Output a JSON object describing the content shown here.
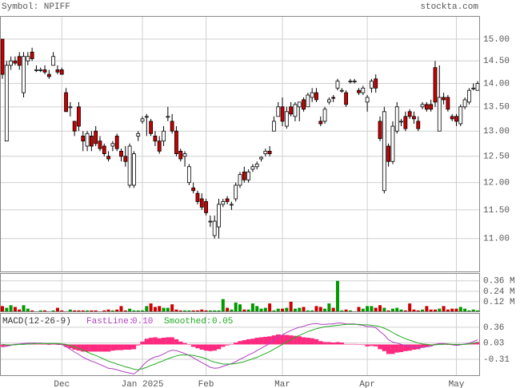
{
  "chart_data": [
    {
      "type": "candlestick",
      "title": "Symbol: NPIFF",
      "source": "stockta.com",
      "log": true,
      "grid": true,
      "up_color": "#ffffff",
      "down_color": "#cc0000",
      "ylim": [
        10.45,
        15.55
      ],
      "yticks": [
        {
          "value": 11,
          "label": "11.00"
        },
        {
          "value": 11.5,
          "label": "11.50"
        },
        {
          "value": 12,
          "label": "12.00"
        },
        {
          "value": 12.5,
          "label": "12.50"
        },
        {
          "value": 13,
          "label": "13.00"
        },
        {
          "value": 13.5,
          "label": "13.50"
        },
        {
          "value": 14,
          "label": "14.00"
        },
        {
          "value": 14.5,
          "label": "14.50"
        },
        {
          "value": 15,
          "label": "15.00"
        }
      ],
      "x_labels": [
        {
          "index": 14,
          "label": "Dec"
        },
        {
          "index": 33,
          "label": "Jan 2025"
        },
        {
          "index": 48,
          "label": "Feb"
        },
        {
          "index": 66,
          "label": "Mar"
        },
        {
          "index": 86,
          "label": "Apr"
        },
        {
          "index": 107,
          "label": "May"
        }
      ],
      "candles": [
        [
          15.0,
          15.0,
          14.1,
          14.2
        ],
        [
          12.8,
          14.5,
          12.8,
          14.4
        ],
        [
          14.4,
          14.6,
          14.3,
          14.5
        ],
        [
          14.5,
          14.6,
          14.4,
          14.45
        ],
        [
          14.6,
          14.7,
          14.3,
          14.4
        ],
        [
          13.8,
          14.7,
          13.7,
          14.6
        ],
        [
          14.5,
          14.7,
          14.4,
          14.6
        ],
        [
          14.7,
          14.8,
          14.5,
          14.55
        ],
        [
          14.3,
          14.4,
          14.25,
          14.3
        ],
        [
          14.3,
          14.35,
          14.25,
          14.3
        ],
        [
          14.3,
          14.4,
          14.2,
          14.25
        ],
        [
          14.2,
          14.3,
          14.1,
          14.15
        ],
        [
          14.4,
          14.7,
          14.4,
          14.6
        ],
        [
          14.3,
          14.4,
          14.2,
          14.25
        ],
        [
          14.3,
          14.35,
          14.2,
          14.2
        ],
        [
          13.8,
          13.9,
          13.4,
          13.4
        ],
        [
          13.5,
          13.6,
          13.3,
          13.5
        ],
        [
          13.2,
          13.2,
          12.9,
          13.0
        ],
        [
          13.5,
          13.6,
          13.0,
          13.1
        ],
        [
          12.9,
          13.0,
          12.6,
          12.8
        ],
        [
          12.7,
          13.0,
          12.6,
          12.95
        ],
        [
          12.9,
          13.0,
          12.6,
          12.7
        ],
        [
          13.0,
          13.1,
          12.7,
          12.75
        ],
        [
          12.8,
          12.9,
          12.6,
          12.65
        ],
        [
          12.7,
          12.75,
          12.5,
          12.55
        ],
        [
          12.5,
          12.6,
          12.4,
          12.45
        ],
        [
          12.7,
          12.8,
          12.6,
          12.75
        ],
        [
          12.9,
          12.95,
          12.6,
          12.65
        ],
        [
          12.6,
          12.65,
          12.4,
          12.5
        ],
        [
          12.5,
          12.7,
          12.3,
          12.4
        ],
        [
          11.95,
          12.75,
          11.9,
          12.7
        ],
        [
          11.95,
          12.6,
          11.9,
          12.55
        ],
        [
          12.9,
          13.0,
          12.8,
          12.95
        ],
        [
          13.2,
          13.3,
          13.15,
          13.25
        ],
        [
          13.3,
          13.35,
          12.9,
          13.3
        ],
        [
          13.2,
          13.25,
          12.9,
          12.95
        ],
        [
          12.9,
          13.0,
          12.7,
          12.8
        ],
        [
          12.8,
          12.9,
          12.55,
          12.6
        ],
        [
          12.8,
          13.1,
          12.7,
          13.0
        ],
        [
          13.3,
          13.5,
          13.2,
          13.3
        ],
        [
          13.2,
          13.35,
          12.95,
          13.0
        ],
        [
          13.0,
          13.1,
          12.5,
          12.55
        ],
        [
          12.6,
          12.65,
          12.4,
          12.45
        ],
        [
          12.5,
          12.6,
          12.3,
          12.55
        ],
        [
          12.0,
          12.35,
          11.95,
          12.3
        ],
        [
          11.9,
          12.0,
          11.8,
          11.85
        ],
        [
          11.8,
          11.85,
          11.6,
          11.65
        ],
        [
          11.7,
          11.8,
          11.5,
          11.55
        ],
        [
          11.65,
          11.7,
          11.4,
          11.45
        ],
        [
          11.3,
          11.4,
          11.2,
          11.3
        ],
        [
          11.05,
          11.4,
          11.0,
          11.3
        ],
        [
          11.2,
          11.7,
          11.0,
          11.6
        ],
        [
          11.6,
          11.7,
          11.55,
          11.65
        ],
        [
          11.7,
          11.75,
          11.6,
          11.65
        ],
        [
          11.6,
          11.65,
          11.5,
          11.6
        ],
        [
          11.7,
          12.0,
          11.65,
          11.95
        ],
        [
          11.95,
          12.2,
          11.9,
          12.15
        ],
        [
          12.2,
          12.3,
          12.0,
          12.05
        ],
        [
          12.05,
          12.25,
          12.0,
          12.2
        ],
        [
          12.25,
          12.35,
          12.2,
          12.3
        ],
        [
          12.3,
          12.4,
          12.25,
          12.35
        ],
        [
          12.45,
          12.5,
          12.4,
          12.48
        ],
        [
          12.55,
          12.65,
          12.5,
          12.6
        ],
        [
          12.6,
          12.7,
          12.5,
          12.55
        ],
        [
          13.0,
          13.3,
          13.0,
          13.2
        ],
        [
          13.3,
          13.6,
          13.3,
          13.5
        ],
        [
          13.5,
          13.7,
          13.1,
          13.2
        ],
        [
          13.1,
          13.5,
          13.05,
          13.4
        ],
        [
          13.5,
          13.6,
          13.3,
          13.35
        ],
        [
          13.3,
          13.6,
          13.2,
          13.55
        ],
        [
          13.5,
          13.6,
          13.2,
          13.6
        ],
        [
          13.65,
          13.7,
          13.4,
          13.45
        ],
        [
          13.5,
          13.8,
          13.5,
          13.75
        ],
        [
          13.7,
          13.9,
          13.6,
          13.8
        ],
        [
          13.8,
          13.9,
          13.6,
          13.65
        ],
        [
          13.2,
          13.3,
          13.1,
          13.15
        ],
        [
          13.2,
          13.5,
          13.15,
          13.45
        ],
        [
          13.6,
          13.7,
          13.55,
          13.65
        ],
        [
          13.7,
          13.75,
          13.6,
          13.68
        ],
        [
          13.9,
          14.1,
          13.85,
          14.05
        ],
        [
          13.85,
          13.9,
          13.8,
          13.85
        ],
        [
          13.8,
          13.85,
          13.5,
          13.55
        ],
        [
          14.05,
          14.1,
          14.0,
          14.05
        ],
        [
          14.05,
          14.1,
          14.0,
          14.05
        ],
        [
          13.85,
          13.9,
          13.75,
          13.8
        ],
        [
          13.8,
          13.95,
          13.75,
          13.9
        ],
        [
          13.6,
          13.75,
          13.4,
          13.7
        ],
        [
          13.9,
          14.1,
          13.8,
          14.05
        ],
        [
          14.1,
          14.2,
          13.8,
          13.9
        ],
        [
          13.2,
          13.3,
          12.8,
          12.85
        ],
        [
          11.85,
          13.5,
          11.8,
          13.4
        ],
        [
          12.7,
          12.75,
          12.3,
          12.4
        ],
        [
          12.4,
          13.2,
          12.35,
          13.1
        ],
        [
          13.0,
          13.6,
          12.95,
          13.5
        ],
        [
          13.2,
          13.25,
          13.1,
          13.2
        ],
        [
          13.3,
          13.4,
          13.0,
          13.05
        ],
        [
          13.4,
          13.45,
          13.25,
          13.3
        ],
        [
          13.3,
          13.4,
          13.15,
          13.25
        ],
        [
          13.2,
          13.3,
          13.0,
          13.05
        ],
        [
          13.5,
          13.6,
          13.45,
          13.55
        ],
        [
          13.55,
          13.6,
          13.4,
          13.45
        ],
        [
          13.55,
          13.65,
          13.4,
          13.45
        ],
        [
          14.35,
          14.5,
          13.5,
          13.6
        ],
        [
          13.0,
          14.4,
          13.0,
          13.7
        ],
        [
          13.7,
          13.8,
          13.55,
          13.65
        ],
        [
          13.7,
          13.75,
          13.4,
          13.45
        ],
        [
          13.3,
          13.35,
          13.2,
          13.25
        ],
        [
          13.3,
          13.35,
          13.1,
          13.2
        ],
        [
          13.15,
          13.55,
          13.1,
          13.5
        ],
        [
          13.5,
          13.7,
          13.45,
          13.65
        ],
        [
          13.6,
          13.9,
          13.55,
          13.85
        ],
        [
          13.9,
          14.0,
          13.85,
          13.9
        ],
        [
          13.85,
          14.05,
          13.85,
          14.0
        ]
      ]
    },
    {
      "type": "bar",
      "up_color": "#009900",
      "down_color": "#cc0000",
      "grid": true,
      "ylim": [
        0,
        0.45
      ],
      "yticks": [
        {
          "value": 0.12,
          "label": "0.12 M"
        },
        {
          "value": 0.24,
          "label": "0.24 M"
        },
        {
          "value": 0.36,
          "label": "0.36 M"
        }
      ],
      "values": [
        0.07,
        0.05,
        0.08,
        0.06,
        0.03,
        0.08,
        0.04,
        0.02,
        0.01,
        0.02,
        0.02,
        0.01,
        0.02,
        0.05,
        0.02,
        0.01,
        0.03,
        0.02,
        0.02,
        0.02,
        0.02,
        0.02,
        0.02,
        0.01,
        0.02,
        0.03,
        0.02,
        0.03,
        0.07,
        0.02,
        0.04,
        0.02,
        0.02,
        0.02,
        0.07,
        0.1,
        0.06,
        0.07,
        0.05,
        0.05,
        0.09,
        0.03,
        0.02,
        0.02,
        0.02,
        0.02,
        0.02,
        0.03,
        0.02,
        0.02,
        0.02,
        0.02,
        0.15,
        0.05,
        0.03,
        0.11,
        0.09,
        0.03,
        0.03,
        0.1,
        0.07,
        0.04,
        0.05,
        0.1,
        0.02,
        0.04,
        0.04,
        0.05,
        0.12,
        0.04,
        0.05,
        0.06,
        0.02,
        0.02,
        0.07,
        0.06,
        0.04,
        0.1,
        0.05,
        0.36,
        0.02,
        0.03,
        0.02,
        0.01,
        0.06,
        0.04,
        0.07,
        0.07,
        0.05,
        0.08,
        0.05,
        0.02,
        0.04,
        0.05,
        0.03,
        0.02,
        0.1,
        0.03,
        0.02,
        0.03,
        0.07,
        0.03,
        0.03,
        0.04,
        0.07,
        0.03,
        0.04,
        0.04,
        0.06,
        0.04,
        0.02,
        0.03,
        0.02
      ]
    },
    {
      "type": "macd",
      "title": "MACD(12-26-9)",
      "grid": true,
      "ylim": [
        -0.645,
        0.66
      ],
      "yticks": [
        -0.31,
        0.03,
        0.36
      ],
      "series": [
        {
          "name": "FastLine:",
          "value_label": "0.10",
          "color": "#b040c0",
          "values": [
            -0.05,
            -0.04,
            -0.02,
            0,
            0.01,
            0.02,
            0.03,
            0.03,
            0.03,
            0.03,
            0.02,
            0.01,
            0.02,
            0.01,
            0,
            -0.05,
            -0.1,
            -0.16,
            -0.21,
            -0.27,
            -0.31,
            -0.35,
            -0.38,
            -0.42,
            -0.46,
            -0.5,
            -0.51,
            -0.53,
            -0.56,
            -0.58,
            -0.6,
            -0.62,
            -0.55,
            -0.45,
            -0.36,
            -0.3,
            -0.26,
            -0.24,
            -0.2,
            -0.15,
            -0.12,
            -0.13,
            -0.16,
            -0.19,
            -0.23,
            -0.28,
            -0.33,
            -0.38,
            -0.43,
            -0.48,
            -0.5,
            -0.49,
            -0.46,
            -0.43,
            -0.4,
            -0.36,
            -0.31,
            -0.27,
            -0.22,
            -0.18,
            -0.13,
            -0.08,
            -0.03,
            0.02,
            0.09,
            0.16,
            0.2,
            0.25,
            0.29,
            0.33,
            0.36,
            0.38,
            0.41,
            0.43,
            0.44,
            0.42,
            0.42,
            0.43,
            0.43,
            0.45,
            0.45,
            0.43,
            0.43,
            0.43,
            0.41,
            0.4,
            0.37,
            0.37,
            0.35,
            0.27,
            0.2,
            0.1,
            0.05,
            0.03,
            0,
            -0.02,
            -0.04,
            -0.05,
            -0.07,
            -0.06,
            -0.05,
            -0.04,
            0.0,
            0.02,
            0.02,
            0.01,
            -0.01,
            -0.02,
            -0.01,
            0.01,
            0.03,
            0.06,
            0.1
          ]
        },
        {
          "name": "Smoothed:",
          "value_label": "0.05",
          "color": "#22aa22",
          "values": [
            0,
            -0.01,
            -0.01,
            -0.01,
            0,
            0,
            0.01,
            0.01,
            0.02,
            0.02,
            0.02,
            0.02,
            0.02,
            0.02,
            0.01,
            0,
            -0.02,
            -0.05,
            -0.08,
            -0.12,
            -0.16,
            -0.2,
            -0.23,
            -0.27,
            -0.31,
            -0.35,
            -0.38,
            -0.41,
            -0.44,
            -0.47,
            -0.49,
            -0.52,
            -0.53,
            -0.51,
            -0.48,
            -0.44,
            -0.41,
            -0.37,
            -0.34,
            -0.3,
            -0.27,
            -0.24,
            -0.22,
            -0.22,
            -0.22,
            -0.23,
            -0.25,
            -0.27,
            -0.3,
            -0.34,
            -0.37,
            -0.39,
            -0.41,
            -0.41,
            -0.41,
            -0.4,
            -0.38,
            -0.36,
            -0.33,
            -0.3,
            -0.27,
            -0.23,
            -0.19,
            -0.15,
            -0.1,
            -0.05,
            0,
            0.05,
            0.1,
            0.15,
            0.19,
            0.23,
            0.27,
            0.3,
            0.33,
            0.35,
            0.37,
            0.38,
            0.39,
            0.4,
            0.41,
            0.42,
            0.42,
            0.42,
            0.42,
            0.41,
            0.41,
            0.4,
            0.39,
            0.37,
            0.34,
            0.3,
            0.25,
            0.2,
            0.16,
            0.12,
            0.09,
            0.06,
            0.03,
            0.01,
            0,
            -0.01,
            -0.01,
            0,
            0,
            0.01,
            0,
            0,
            0,
            0,
            0.01,
            0.03,
            0.05
          ]
        }
      ],
      "histogram": {
        "color": "#ff2a7f",
        "values": [
          -0.05,
          -0.03,
          -0.01,
          0.01,
          0.01,
          0.02,
          0.02,
          0.02,
          0.01,
          0.01,
          0,
          -0.01,
          0,
          -0.01,
          -0.01,
          -0.05,
          -0.08,
          -0.11,
          -0.13,
          -0.15,
          -0.15,
          -0.15,
          -0.15,
          -0.15,
          -0.15,
          -0.15,
          -0.13,
          -0.12,
          -0.12,
          -0.11,
          -0.11,
          -0.1,
          -0.02,
          0.06,
          0.12,
          0.14,
          0.15,
          0.13,
          0.14,
          0.15,
          0.15,
          0.11,
          0.06,
          0.03,
          -0.01,
          -0.05,
          -0.08,
          -0.11,
          -0.13,
          -0.14,
          -0.13,
          -0.1,
          -0.05,
          -0.02,
          0.01,
          0.04,
          0.07,
          0.09,
          0.11,
          0.12,
          0.14,
          0.15,
          0.16,
          0.17,
          0.19,
          0.21,
          0.2,
          0.2,
          0.19,
          0.18,
          0.17,
          0.15,
          0.14,
          0.13,
          0.11,
          0.07,
          0.05,
          0.05,
          0.04,
          0.05,
          0.04,
          0.01,
          0.01,
          0.01,
          -0.01,
          -0.01,
          -0.04,
          -0.03,
          -0.04,
          -0.1,
          -0.14,
          -0.2,
          -0.2,
          -0.17,
          -0.16,
          -0.14,
          -0.13,
          -0.11,
          -0.1,
          -0.07,
          -0.05,
          -0.03,
          0.01,
          0.02,
          0.02,
          0,
          -0.01,
          -0.02,
          -0.01,
          0.01,
          0.02,
          0.03,
          0.05
        ]
      }
    }
  ]
}
